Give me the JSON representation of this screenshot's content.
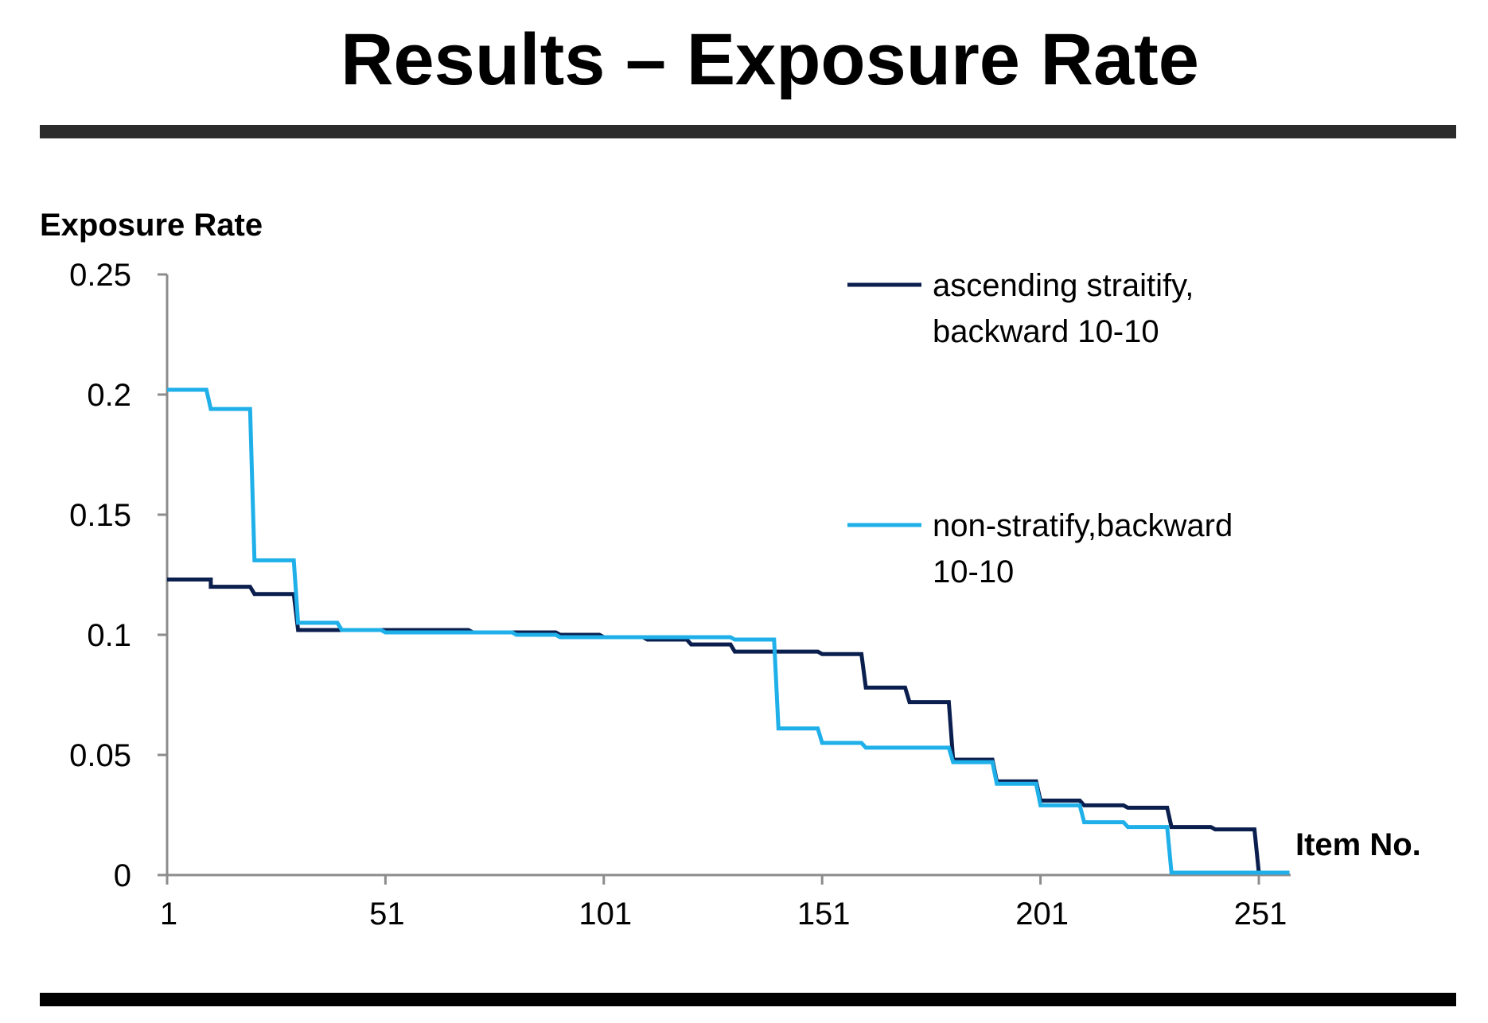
{
  "slide": {
    "title": "Results – Exposure Rate"
  },
  "chart_data": {
    "type": "line",
    "step": true,
    "ylabel": "Exposure Rate",
    "xlabel": "Item No.",
    "xlim": [
      1,
      258
    ],
    "ylim": [
      0,
      0.25
    ],
    "x_ticks": [
      1,
      51,
      101,
      151,
      201,
      251
    ],
    "x_tick_labels": [
      "1",
      "51",
      "101",
      "151",
      "201",
      "251"
    ],
    "y_ticks": [
      0,
      0.05,
      0.1,
      0.15,
      0.2,
      0.25
    ],
    "y_tick_labels": [
      "0",
      "0.05",
      "0.1",
      "0.15",
      "0.2",
      "0.25"
    ],
    "grid": false,
    "legend_position": "top-right",
    "series": [
      {
        "name": "ascending straitify, backward 10-10",
        "name_lines": [
          "ascending straitify,",
          "backward 10-10"
        ],
        "color": "#0b1f4f",
        "points": [
          [
            1,
            0.123
          ],
          [
            11,
            0.123
          ],
          [
            11,
            0.12
          ],
          [
            20,
            0.12
          ],
          [
            21,
            0.117
          ],
          [
            30,
            0.117
          ],
          [
            31,
            0.102
          ],
          [
            70,
            0.102
          ],
          [
            71,
            0.101
          ],
          [
            90,
            0.101
          ],
          [
            91,
            0.1
          ],
          [
            100,
            0.1
          ],
          [
            101,
            0.099
          ],
          [
            110,
            0.099
          ],
          [
            111,
            0.098
          ],
          [
            120,
            0.098
          ],
          [
            121,
            0.096
          ],
          [
            130,
            0.096
          ],
          [
            131,
            0.093
          ],
          [
            150,
            0.093
          ],
          [
            151,
            0.092
          ],
          [
            160,
            0.092
          ],
          [
            161,
            0.078
          ],
          [
            170,
            0.078
          ],
          [
            171,
            0.072
          ],
          [
            180,
            0.072
          ],
          [
            181,
            0.048
          ],
          [
            190,
            0.048
          ],
          [
            191,
            0.039
          ],
          [
            200,
            0.039
          ],
          [
            201,
            0.031
          ],
          [
            210,
            0.031
          ],
          [
            211,
            0.029
          ],
          [
            220,
            0.029
          ],
          [
            221,
            0.028
          ],
          [
            230,
            0.028
          ],
          [
            231,
            0.02
          ],
          [
            240,
            0.02
          ],
          [
            241,
            0.019
          ],
          [
            250,
            0.019
          ],
          [
            251,
            0.001
          ],
          [
            258,
            0.001
          ]
        ]
      },
      {
        "name": "non-stratify,backward 10-10",
        "name_lines": [
          "non-stratify,backward",
          "10-10"
        ],
        "color": "#1fb0ea",
        "points": [
          [
            1,
            0.202
          ],
          [
            10,
            0.202
          ],
          [
            11,
            0.194
          ],
          [
            20,
            0.194
          ],
          [
            21,
            0.131
          ],
          [
            30,
            0.131
          ],
          [
            31,
            0.105
          ],
          [
            40,
            0.105
          ],
          [
            41,
            0.102
          ],
          [
            50,
            0.102
          ],
          [
            51,
            0.101
          ],
          [
            80,
            0.101
          ],
          [
            81,
            0.1
          ],
          [
            90,
            0.1
          ],
          [
            91,
            0.099
          ],
          [
            130,
            0.099
          ],
          [
            131,
            0.098
          ],
          [
            140,
            0.098
          ],
          [
            141,
            0.061
          ],
          [
            150,
            0.061
          ],
          [
            151,
            0.055
          ],
          [
            160,
            0.055
          ],
          [
            161,
            0.053
          ],
          [
            180,
            0.053
          ],
          [
            181,
            0.047
          ],
          [
            190,
            0.047
          ],
          [
            191,
            0.038
          ],
          [
            200,
            0.038
          ],
          [
            201,
            0.029
          ],
          [
            210,
            0.029
          ],
          [
            211,
            0.022
          ],
          [
            220,
            0.022
          ],
          [
            221,
            0.02
          ],
          [
            230,
            0.02
          ],
          [
            231,
            0.001
          ],
          [
            258,
            0.001
          ]
        ]
      }
    ]
  }
}
